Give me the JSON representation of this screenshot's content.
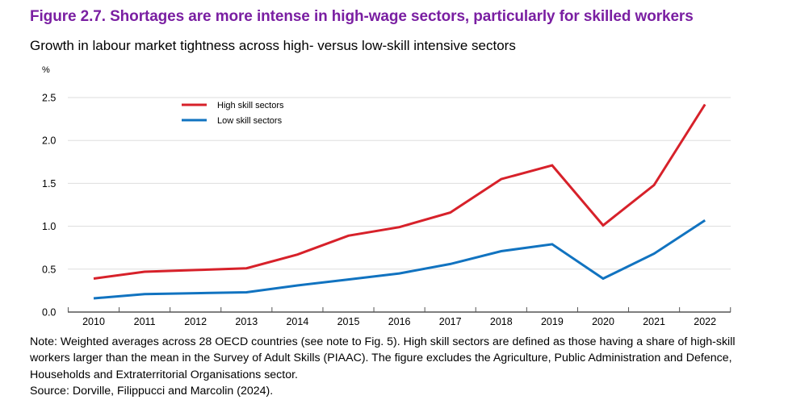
{
  "header": {
    "title": "Figure 2.7. Shortages are more intense in high-wage sectors, particularly for skilled workers",
    "subtitle": "Growth in labour market tightness across high- versus low-skill intensive sectors"
  },
  "colors": {
    "title": "#7a1fa2",
    "high_skill": "#d7212a",
    "low_skill": "#1173c0",
    "grid": "#dddddd",
    "axis": "#555555"
  },
  "chart_data": {
    "type": "line",
    "title": "Growth in labour market tightness across high- versus low-skill intensive sectors",
    "xlabel": "",
    "ylabel": "%",
    "x": [
      "2010",
      "2011",
      "2012",
      "2013",
      "2014",
      "2015",
      "2016",
      "2017",
      "2018",
      "2019",
      "2020",
      "2021",
      "2022"
    ],
    "yticks": [
      "0.0",
      "0.5",
      "1.0",
      "1.5",
      "2.0",
      "2.5"
    ],
    "ytick_values": [
      0,
      0.5,
      1.0,
      1.5,
      2.0,
      2.5
    ],
    "ylim": [
      0,
      2.5
    ],
    "grid": true,
    "legend_position": "top-left",
    "series": [
      {
        "name": "High skill sectors",
        "color": "#d7212a",
        "values": [
          0.39,
          0.47,
          0.49,
          0.51,
          0.67,
          0.89,
          0.99,
          1.16,
          1.55,
          1.71,
          1.01,
          1.48,
          2.42
        ]
      },
      {
        "name": "Low skill sectors",
        "color": "#1173c0",
        "values": [
          0.16,
          0.21,
          0.22,
          0.23,
          0.31,
          0.38,
          0.45,
          0.56,
          0.71,
          0.79,
          0.39,
          0.68,
          1.07
        ]
      }
    ]
  },
  "notes": {
    "lines": [
      "Note: Weighted averages across 28 OECD countries (see note to Fig. 5). High skill sectors are defined as those having a share of high-skill",
      "workers larger than the mean in the Survey of Adult Skills (PIAAC). The figure excludes the Agriculture, Public Administration and Defence,",
      "Households and Extraterritorial Organisations sector.",
      "Source: Dorville, Filippucci and Marcolin (2024)."
    ]
  }
}
